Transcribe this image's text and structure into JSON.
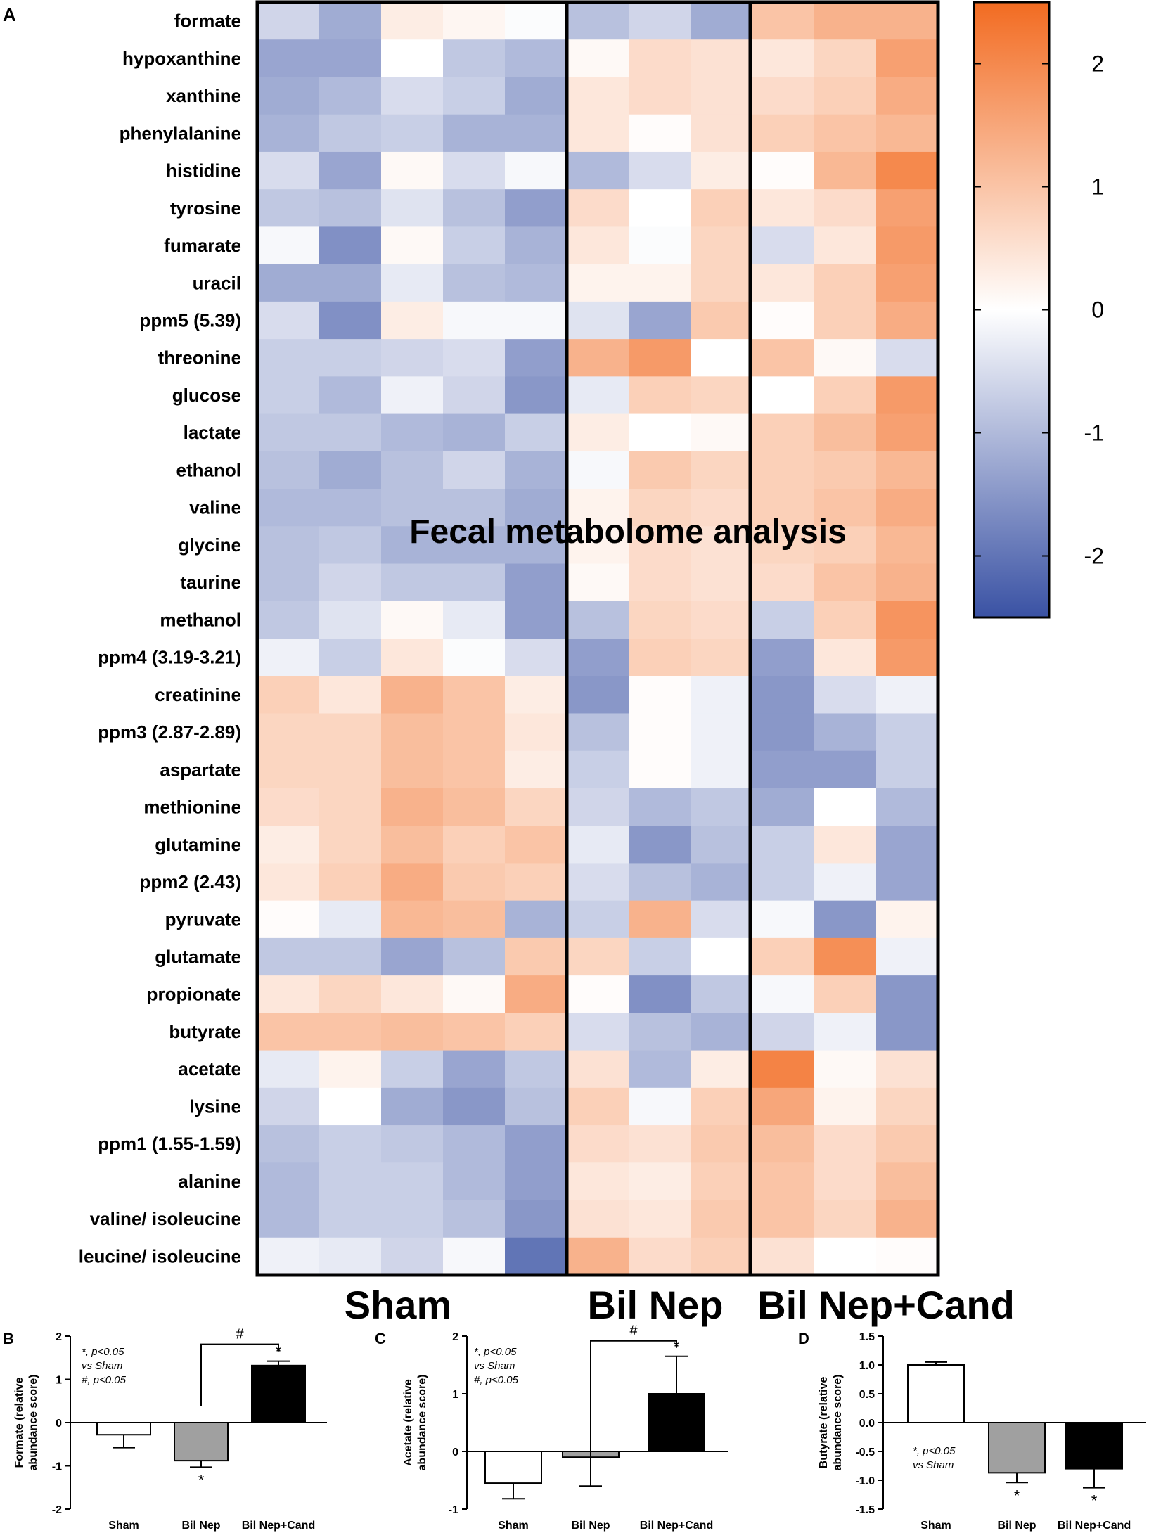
{
  "chart_data": [
    {
      "panel": "A",
      "type": "heatmap",
      "title": "Fecal metabolome analysis",
      "groups": [
        {
          "name": "Sham",
          "n": 5
        },
        {
          "name": "Bil Nep",
          "n": 3
        },
        {
          "name": "Bil Nep+Cand",
          "n": 3
        }
      ],
      "rows": [
        "formate",
        "hypoxanthine",
        "xanthine",
        "phenylalanine",
        "histidine",
        "tyrosine",
        "fumarate",
        "uracil",
        "ppm5 (5.39)",
        "threonine",
        "glucose",
        "lactate",
        "ethanol",
        "valine",
        "glycine",
        "taurine",
        "methanol",
        "ppm4 (3.19-3.21)",
        "creatinine",
        "ppm3 (2.87-2.89)",
        "aspartate",
        "methionine",
        "glutamine",
        "ppm2 (2.43)",
        "pyruvate",
        "glutamate",
        "propionate",
        "butyrate",
        "acetate",
        "lysine",
        "ppm1 (1.55-1.59)",
        "alanine",
        "valine/ isoleucine",
        "leucine/ isoleucine"
      ],
      "values": [
        [
          -0.6,
          -1.2,
          0.3,
          0.15,
          -0.05,
          -0.9,
          -0.6,
          -1.2,
          1.0,
          1.3,
          1.3
        ],
        [
          -1.3,
          -1.3,
          0.0,
          -0.8,
          -1.0,
          0.1,
          0.6,
          0.5,
          0.4,
          0.7,
          1.6
        ],
        [
          -1.2,
          -1.0,
          -0.5,
          -0.7,
          -1.2,
          0.4,
          0.6,
          0.5,
          0.6,
          0.8,
          1.4
        ],
        [
          -1.1,
          -0.8,
          -0.7,
          -1.1,
          -1.1,
          0.4,
          0.05,
          0.5,
          0.8,
          1.0,
          1.2
        ],
        [
          -0.5,
          -1.3,
          0.1,
          -0.5,
          -0.1,
          -1.0,
          -0.5,
          0.3,
          0.05,
          1.2,
          2.0
        ],
        [
          -0.8,
          -0.9,
          -0.4,
          -0.9,
          -1.4,
          0.6,
          0.0,
          0.8,
          0.4,
          0.6,
          1.6
        ],
        [
          -0.1,
          -1.6,
          0.1,
          -0.7,
          -1.1,
          0.4,
          -0.05,
          0.7,
          -0.5,
          0.4,
          1.7
        ],
        [
          -1.2,
          -1.2,
          -0.3,
          -0.9,
          -1.0,
          0.2,
          0.2,
          0.7,
          0.4,
          0.8,
          1.6
        ],
        [
          -0.5,
          -1.6,
          0.3,
          -0.1,
          -0.1,
          -0.4,
          -1.3,
          0.9,
          0.05,
          0.8,
          1.4
        ],
        [
          -0.7,
          -0.7,
          -0.6,
          -0.5,
          -1.4,
          1.3,
          1.7,
          0.0,
          1.0,
          0.1,
          -0.5
        ],
        [
          -0.7,
          -1.0,
          -0.2,
          -0.6,
          -1.5,
          -0.3,
          0.8,
          0.7,
          0.0,
          0.8,
          1.7
        ],
        [
          -0.8,
          -0.8,
          -1.0,
          -1.1,
          -0.7,
          0.3,
          0.0,
          0.1,
          0.8,
          1.1,
          1.6
        ],
        [
          -0.9,
          -1.2,
          -0.9,
          -0.6,
          -1.1,
          -0.1,
          0.9,
          0.7,
          0.8,
          0.9,
          1.2
        ],
        [
          -1.0,
          -1.0,
          -0.9,
          -0.9,
          -1.2,
          0.2,
          0.7,
          0.6,
          0.8,
          1.0,
          1.4
        ],
        [
          -0.9,
          -0.8,
          -1.1,
          -1.1,
          -1.1,
          0.2,
          0.6,
          0.5,
          0.7,
          0.8,
          1.2
        ],
        [
          -0.9,
          -0.6,
          -0.8,
          -0.8,
          -1.4,
          0.1,
          0.6,
          0.5,
          0.6,
          1.0,
          1.3
        ],
        [
          -0.8,
          -0.4,
          0.1,
          -0.3,
          -1.4,
          -0.9,
          0.7,
          0.6,
          -0.7,
          0.8,
          1.8
        ],
        [
          -0.2,
          -0.7,
          0.4,
          -0.05,
          -0.5,
          -1.4,
          0.8,
          0.7,
          -1.4,
          0.4,
          1.7
        ],
        [
          0.8,
          0.4,
          1.3,
          1.0,
          0.3,
          -1.5,
          0.05,
          -0.2,
          -1.5,
          -0.5,
          -0.2
        ],
        [
          0.7,
          0.7,
          1.1,
          1.0,
          0.4,
          -0.9,
          0.05,
          -0.2,
          -1.5,
          -1.1,
          -0.7
        ],
        [
          0.7,
          0.7,
          1.1,
          1.0,
          0.3,
          -0.7,
          0.05,
          -0.2,
          -1.4,
          -1.4,
          -0.7
        ],
        [
          0.6,
          0.7,
          1.3,
          1.1,
          0.7,
          -0.6,
          -1.0,
          -0.8,
          -1.2,
          0.0,
          -1.0
        ],
        [
          0.3,
          0.7,
          1.1,
          0.8,
          1.0,
          -0.3,
          -1.5,
          -0.9,
          -0.7,
          0.4,
          -1.3
        ],
        [
          0.4,
          0.8,
          1.4,
          0.9,
          0.8,
          -0.5,
          -0.9,
          -1.1,
          -0.7,
          -0.2,
          -1.3
        ],
        [
          0.05,
          -0.3,
          1.2,
          1.1,
          -1.1,
          -0.7,
          1.3,
          -0.5,
          -0.1,
          -1.5,
          0.2
        ],
        [
          -0.8,
          -0.8,
          -1.3,
          -0.9,
          0.9,
          0.7,
          -0.7,
          0.0,
          0.8,
          1.9,
          -0.2
        ],
        [
          0.4,
          0.7,
          0.4,
          0.1,
          1.4,
          0.05,
          -1.6,
          -0.8,
          -0.1,
          0.8,
          -1.5
        ],
        [
          1.0,
          1.0,
          1.1,
          1.0,
          0.8,
          -0.5,
          -0.9,
          -1.1,
          -0.6,
          -0.2,
          -1.5
        ],
        [
          -0.3,
          0.2,
          -0.7,
          -1.3,
          -0.8,
          0.5,
          -1.0,
          0.3,
          2.1,
          0.1,
          0.5
        ],
        [
          -0.6,
          0.0,
          -1.2,
          -1.5,
          -0.9,
          0.8,
          -0.1,
          0.8,
          1.5,
          0.2,
          0.7
        ],
        [
          -0.9,
          -0.7,
          -0.8,
          -1.0,
          -1.4,
          0.6,
          0.5,
          0.9,
          1.1,
          0.6,
          0.9
        ],
        [
          -1.0,
          -0.7,
          -0.7,
          -1.0,
          -1.4,
          0.4,
          0.3,
          0.8,
          1.0,
          0.6,
          1.1
        ],
        [
          -1.0,
          -0.7,
          -0.7,
          -0.9,
          -1.5,
          0.5,
          0.4,
          0.9,
          1.0,
          0.7,
          1.3
        ],
        [
          -0.2,
          -0.3,
          -0.6,
          -0.1,
          -2.0,
          1.3,
          0.6,
          0.8,
          0.5,
          0.0,
          0.05
        ]
      ],
      "colorbar": {
        "ticks": [
          2,
          1,
          0,
          -1,
          -2
        ],
        "range": [
          -2.5,
          2.5
        ],
        "low_color": "#3a52a4",
        "mid_color": "#ffffff",
        "high_color": "#f26b21"
      }
    },
    {
      "panel": "B",
      "type": "bar",
      "ylabel": "Formate (relative abundance score)",
      "categories": [
        "Sham",
        "Bil Nep",
        "Bil Nep+Cand"
      ],
      "values": [
        -0.28,
        -0.88,
        1.32
      ],
      "errors": [
        0.3,
        0.15,
        0.1
      ],
      "bar_colors": [
        "#ffffff",
        "#a0a0a0",
        "#000000"
      ],
      "ylim": [
        -2,
        2
      ],
      "yticks": [
        "-2",
        "-1",
        "0",
        "1",
        "2"
      ],
      "markers": [
        "",
        "*",
        "*"
      ],
      "hash": "#",
      "notes": [
        "*, p<0.05",
        "vs Sham",
        "#, p<0.05"
      ]
    },
    {
      "panel": "C",
      "type": "bar",
      "ylabel": "Acetate (relative abundance score)",
      "categories": [
        "Sham",
        "Bil Nep",
        "Bil Nep+Cand"
      ],
      "values": [
        -0.55,
        -0.1,
        1.0
      ],
      "errors": [
        0.27,
        0.5,
        0.65
      ],
      "bar_colors": [
        "#ffffff",
        "#a0a0a0",
        "#000000"
      ],
      "ylim": [
        -1,
        2
      ],
      "yticks": [
        "-1",
        "0",
        "1",
        "2"
      ],
      "markers": [
        "",
        "",
        "*"
      ],
      "hash": "#",
      "notes": [
        "*, p<0.05",
        "vs Sham",
        "#, p<0.05"
      ]
    },
    {
      "panel": "D",
      "type": "bar",
      "ylabel": "Butyrate (relative abundance score)",
      "categories": [
        "Sham",
        "Bil Nep",
        "Bil Nep+Cand"
      ],
      "values": [
        1.0,
        -0.87,
        -0.8
      ],
      "errors": [
        0.05,
        0.17,
        0.33
      ],
      "bar_colors": [
        "#ffffff",
        "#a0a0a0",
        "#000000"
      ],
      "ylim": [
        -1.5,
        1.5
      ],
      "yticks": [
        "-1.5",
        "-1.0",
        "-0.5",
        "0.0",
        "0.5",
        "1.0",
        "1.5"
      ],
      "markers": [
        "",
        "*",
        "*"
      ],
      "notes": [
        "*, p<0.05",
        "vs Sham"
      ]
    }
  ]
}
